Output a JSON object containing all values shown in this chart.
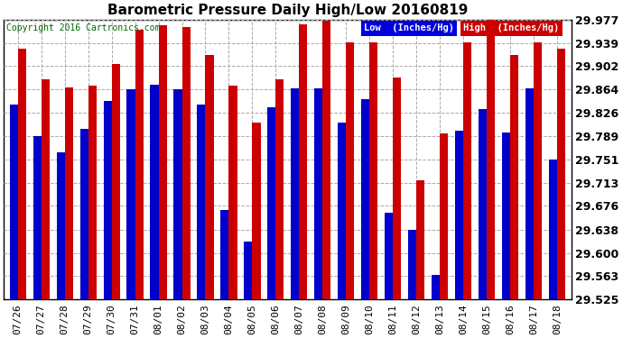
{
  "title": "Barometric Pressure Daily High/Low 20160819",
  "copyright": "Copyright 2016 Cartronics.com",
  "legend_low": "Low  (Inches/Hg)",
  "legend_high": "High  (Inches/Hg)",
  "dates": [
    "07/26",
    "07/27",
    "07/28",
    "07/29",
    "07/30",
    "07/31",
    "08/01",
    "08/02",
    "08/03",
    "08/04",
    "08/05",
    "08/06",
    "08/07",
    "08/08",
    "08/09",
    "08/10",
    "08/11",
    "08/12",
    "08/13",
    "08/14",
    "08/15",
    "08/16",
    "08/17",
    "08/18"
  ],
  "low_values": [
    29.84,
    29.789,
    29.762,
    29.8,
    29.845,
    29.865,
    29.872,
    29.865,
    29.84,
    29.67,
    29.618,
    29.835,
    29.866,
    29.866,
    29.81,
    29.848,
    29.665,
    29.638,
    29.565,
    29.797,
    29.833,
    29.795,
    29.866,
    29.751
  ],
  "high_values": [
    29.93,
    29.88,
    29.867,
    29.87,
    29.905,
    29.96,
    29.968,
    29.965,
    29.92,
    29.87,
    29.81,
    29.88,
    29.97,
    29.975,
    29.94,
    29.94,
    29.883,
    29.718,
    29.793,
    29.94,
    29.977,
    29.92,
    29.94,
    29.93
  ],
  "ymin": 29.525,
  "ymax": 29.977,
  "yticks": [
    29.525,
    29.563,
    29.6,
    29.638,
    29.676,
    29.713,
    29.751,
    29.789,
    29.826,
    29.864,
    29.902,
    29.939,
    29.977
  ],
  "bg_color": "#ffffff",
  "plot_bg_color": "#ffffff",
  "bar_low_color": "#0000cc",
  "bar_high_color": "#cc0000",
  "grid_color": "#aaaaaa",
  "title_fontsize": 11,
  "tick_fontsize": 8,
  "ytick_fontsize": 9,
  "copyright_color": "#006600",
  "legend_low_bg": "#0000dd",
  "legend_high_bg": "#cc0000",
  "legend_text_color": "#ffffff",
  "bar_width": 0.35
}
